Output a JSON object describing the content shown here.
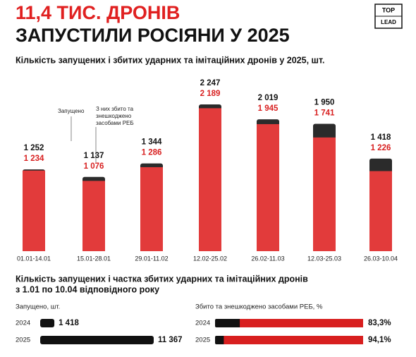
{
  "header": {
    "title_line1": "11,4 ТИС. ДРОНІВ",
    "title_line2": "ЗАПУСТИЛИ РОСІЯНИ У 2025",
    "logo_top": "TOP",
    "logo_bottom": "LEAD"
  },
  "section": {
    "title_line1": "Кількість запущених і частка збитих ударних та імітаційних дронів",
    "title_line2": "з 1.01 по 10.04 відповідного року"
  },
  "chart_data": [
    {
      "type": "bar",
      "title": "Кількість запущених і збитих ударних та імітаційних дронів у 2025, шт.",
      "categories": [
        "01.01-14.01",
        "15.01-28.01",
        "29.01-11.02",
        "12.02-25.02",
        "26.02-11.03",
        "12.03-25.03",
        "26.03-10.04"
      ],
      "series": [
        {
          "name": "Запущено",
          "color": "#2b2b2b",
          "values": [
            1252,
            1137,
            1344,
            2247,
            2019,
            1950,
            1418
          ],
          "value_labels": [
            "1 252",
            "1 137",
            "1 344",
            "2 247",
            "2 019",
            "1 950",
            "1 418"
          ]
        },
        {
          "name": "З них збито та знешкоджено засобами РЕБ",
          "color": "#e23b3b",
          "values": [
            1234,
            1076,
            1286,
            2189,
            1945,
            1741,
            1226
          ],
          "value_labels": [
            "1 234",
            "1 076",
            "1 286",
            "2 189",
            "1 945",
            "1 741",
            "1 226"
          ]
        }
      ]
    },
    {
      "type": "hbar",
      "title": "Запущено, шт.",
      "categories": [
        "2024",
        "2025"
      ],
      "values": [
        1418,
        11367
      ],
      "value_labels": [
        "1 418",
        "11 367"
      ],
      "color": "#111111"
    },
    {
      "type": "track",
      "title": "Збито та знешкоджено засобами РЕБ, %",
      "categories": [
        "2024",
        "2025"
      ],
      "values": [
        83.3,
        94.1
      ],
      "value_labels": [
        "83,3%",
        "94,1%"
      ],
      "xlim": [
        0,
        100
      ],
      "color": "#d81f1f",
      "track_color": "#111111"
    }
  ]
}
